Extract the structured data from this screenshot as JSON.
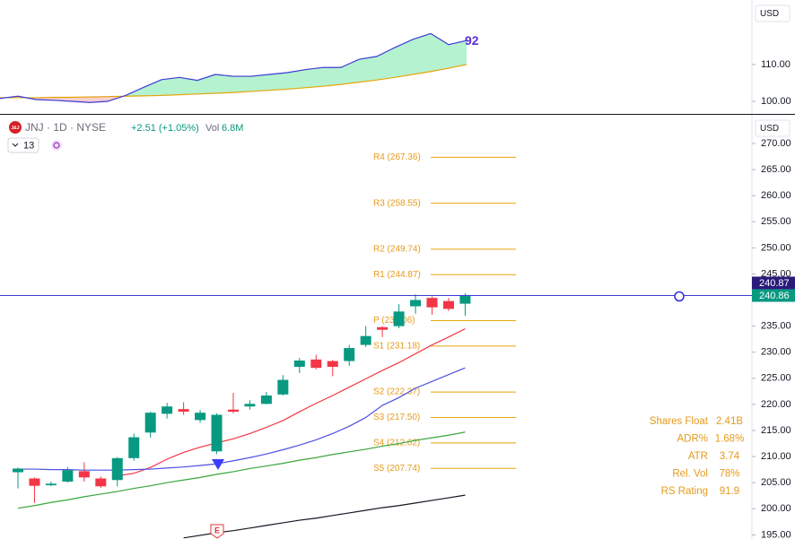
{
  "header": {
    "logo": "J&J",
    "title": "JNJ · 1D · NYSE",
    "change": "+2.51 (+1.05%)",
    "vol_label": "Vol",
    "volume": "6.8M",
    "button": "13",
    "currency": "USD",
    "event": "E"
  },
  "rs_panel": {
    "currency": "USD",
    "label": "92",
    "ylim": [
      96.6,
      127.5
    ],
    "yticks": [
      {
        "value": 110,
        "label": "110.00"
      },
      {
        "value": 100,
        "label": "100.00"
      }
    ],
    "rs": [
      100.8,
      101.4,
      100.5,
      100.3,
      100.0,
      99.7,
      100.0,
      101.6,
      103.8,
      105.9,
      106.5,
      105.7,
      107.3,
      106.8,
      106.8,
      107.3,
      107.8,
      108.6,
      109.2,
      109.2,
      111.4,
      112.2,
      114.6,
      116.8,
      118.4,
      115.4,
      116.5
    ],
    "ma": [
      101.0,
      101.0,
      101.0,
      101.1,
      101.1,
      101.2,
      101.3,
      101.4,
      101.5,
      101.6,
      101.8,
      102.0,
      102.2,
      102.4,
      102.7,
      103.0,
      103.3,
      103.7,
      104.1,
      104.6,
      105.2,
      105.8,
      106.5,
      107.3,
      108.1,
      109.0,
      110.0
    ]
  },
  "chart_data": {
    "type": "candlestick",
    "ylim": [
      194.2,
      275.5
    ],
    "yticks": [
      {
        "value": 270,
        "label": "270.00"
      },
      {
        "value": 265,
        "label": "265.00"
      },
      {
        "value": 260,
        "label": "260.00"
      },
      {
        "value": 255,
        "label": "255.00"
      },
      {
        "value": 250,
        "label": "250.00"
      },
      {
        "value": 245,
        "label": "245.00"
      },
      {
        "value": 235,
        "label": "235.00"
      },
      {
        "value": 230,
        "label": "230.00"
      },
      {
        "value": 225,
        "label": "225.00"
      },
      {
        "value": 220,
        "label": "220.00"
      },
      {
        "value": 215,
        "label": "215.00"
      },
      {
        "value": 210,
        "label": "210.00"
      },
      {
        "value": 205,
        "label": "205.00"
      },
      {
        "value": 200,
        "label": "200.00"
      },
      {
        "value": 195,
        "label": "195.00"
      }
    ],
    "open": [
      207.0,
      205.8,
      204.5,
      205.2,
      207.2,
      205.8,
      205.5,
      209.7,
      214.6,
      218.2,
      219.1,
      217.0,
      211.0,
      219.0,
      219.6,
      220.1,
      221.9,
      227.2,
      228.6,
      228.3,
      228.3,
      231.4,
      234.8,
      235.0,
      238.8,
      240.4,
      239.8,
      239.3
    ],
    "high": [
      207.9,
      206.0,
      205.2,
      208.0,
      208.9,
      206.2,
      209.9,
      214.4,
      218.6,
      220.3,
      220.4,
      218.9,
      218.3,
      222.2,
      220.8,
      222.4,
      225.6,
      228.9,
      229.5,
      228.5,
      231.4,
      235.0,
      235.0,
      239.2,
      241.1,
      240.7,
      240.4,
      241.3
    ],
    "low": [
      203.9,
      201.1,
      204.3,
      205.0,
      205.2,
      204.0,
      204.3,
      209.2,
      213.6,
      217.3,
      218.0,
      216.5,
      210.5,
      218.3,
      219.0,
      220.0,
      221.7,
      226.0,
      226.7,
      225.4,
      227.4,
      231.0,
      232.9,
      234.6,
      237.4,
      237.2,
      237.9,
      237.0
    ],
    "close": [
      207.7,
      204.4,
      204.8,
      207.4,
      206.0,
      204.3,
      209.7,
      213.7,
      218.4,
      219.6,
      218.6,
      218.4,
      218.0,
      218.6,
      220.1,
      221.7,
      224.7,
      228.4,
      227.0,
      227.2,
      230.8,
      233.1,
      234.3,
      237.8,
      240.0,
      238.6,
      238.3,
      240.9
    ],
    "series": [
      {
        "color": "#f23645",
        "values": [
          null,
          null,
          null,
          null,
          null,
          null,
          206.3,
          206.8,
          207.9,
          209.5,
          210.8,
          211.8,
          212.6,
          213.4,
          214.4,
          215.6,
          216.9,
          218.6,
          220.2,
          221.7,
          223.3,
          224.9,
          226.5,
          228.0,
          229.7,
          231.4,
          232.9,
          234.5
        ]
      },
      {
        "color": "#4c51e0",
        "values": [
          207.6,
          207.6,
          207.5,
          207.5,
          207.4,
          207.4,
          207.4,
          207.5,
          207.6,
          207.8,
          208.0,
          208.3,
          208.6,
          209.2,
          209.8,
          210.5,
          211.3,
          212.2,
          213.2,
          214.4,
          215.8,
          217.5,
          219.8,
          221.3,
          223.1,
          224.4,
          225.7,
          227.0
        ]
      },
      {
        "color": "#3aa63a",
        "values": [
          200.1,
          200.6,
          201.2,
          201.7,
          202.3,
          202.8,
          203.3,
          203.9,
          204.4,
          205.0,
          205.5,
          206.0,
          206.6,
          207.1,
          207.7,
          208.2,
          208.7,
          209.3,
          209.8,
          210.4,
          210.9,
          211.4,
          212.0,
          212.5,
          213.1,
          213.6,
          214.1,
          214.7
        ]
      },
      {
        "color": "#131722",
        "values": [
          null,
          null,
          null,
          null,
          null,
          null,
          null,
          null,
          null,
          null,
          194.4,
          194.9,
          195.4,
          195.8,
          196.3,
          196.8,
          197.3,
          197.8,
          198.2,
          198.7,
          199.2,
          199.7,
          200.2,
          200.6,
          201.1,
          201.6,
          202.1,
          202.6
        ]
      }
    ],
    "pivots": [
      {
        "label": "R4 (267.36)",
        "value": 267.36
      },
      {
        "label": "R3 (258.55)",
        "value": 258.55
      },
      {
        "label": "R2 (249.74)",
        "value": 249.74
      },
      {
        "label": "R1 (244.87)",
        "value": 244.87
      },
      {
        "label": "P (236.06)",
        "value": 236.06
      },
      {
        "label": "S1 (231.18)",
        "value": 231.18
      },
      {
        "label": "S2 (222.37)",
        "value": 222.37
      },
      {
        "label": "S3 (217.50)",
        "value": 217.5
      },
      {
        "label": "S4 (212.62)",
        "value": 212.62
      },
      {
        "label": "S5 (207.74)",
        "value": 207.74
      }
    ],
    "price_tags": [
      {
        "value": 240.87,
        "color": "#2a1a7a"
      },
      {
        "value": 240.86,
        "color": "#089981"
      }
    ]
  },
  "stats": [
    {
      "label": "Shares Float",
      "value": "2.41B"
    },
    {
      "label": "ADR%",
      "value": "1.68%"
    },
    {
      "label": "ATR",
      "value": "3.74"
    },
    {
      "label": "Rel. Vol",
      "value": "78%"
    },
    {
      "label": "RS Rating",
      "value": "91.9"
    }
  ]
}
